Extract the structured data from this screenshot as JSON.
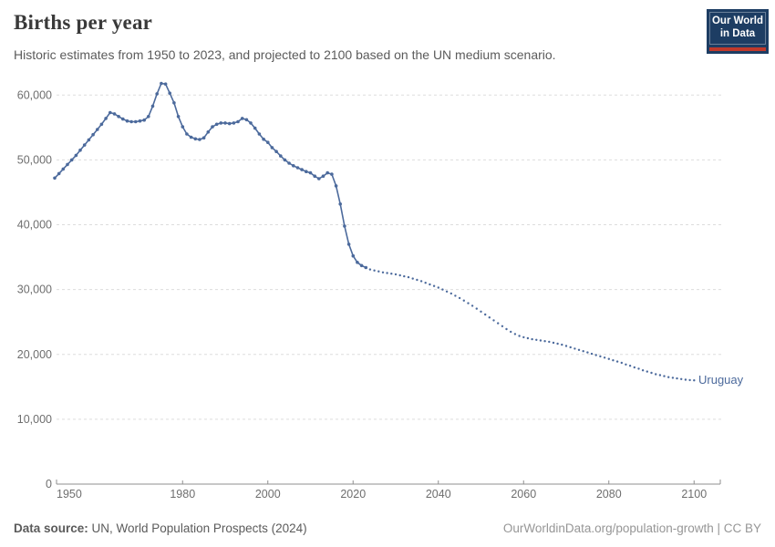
{
  "header": {
    "title": "Births per year",
    "subtitle": "Historic estimates from 1950 to 2023, and projected to 2100 based on the UN medium scenario.",
    "logo": {
      "line1": "Our World",
      "line2": "in Data",
      "bg": "#1d3d63",
      "accent": "#c0392b"
    }
  },
  "footer": {
    "source_label": "Data source:",
    "source_text": " UN, World Population Prospects (2024)",
    "credit": "OurWorldinData.org/population-growth | CC BY"
  },
  "chart_data": {
    "type": "line",
    "title": "Births per year",
    "entity": "Uruguay",
    "line_color": "#4c6a9c",
    "axis_color": "#8f8f8f",
    "grid_color": "#dddddd",
    "tick_label_color": "#6e6e6e",
    "grid": true,
    "legend_position": "end-of-line-label",
    "xlim": [
      1950,
      2100
    ],
    "ylim": [
      0,
      62000
    ],
    "yticks": [
      0,
      10000,
      20000,
      30000,
      40000,
      50000,
      60000
    ],
    "xticks": [
      1950,
      1980,
      2000,
      2020,
      2040,
      2060,
      2080,
      2100
    ],
    "series": [
      {
        "name": "historic",
        "style": "solid-markers",
        "points": [
          [
            1950,
            47200
          ],
          [
            1951,
            47900
          ],
          [
            1952,
            48600
          ],
          [
            1953,
            49300
          ],
          [
            1954,
            50000
          ],
          [
            1955,
            50700
          ],
          [
            1956,
            51500
          ],
          [
            1957,
            52300
          ],
          [
            1958,
            53100
          ],
          [
            1959,
            53900
          ],
          [
            1960,
            54700
          ],
          [
            1961,
            55500
          ],
          [
            1962,
            56400
          ],
          [
            1963,
            57300
          ],
          [
            1964,
            57100
          ],
          [
            1965,
            56700
          ],
          [
            1966,
            56300
          ],
          [
            1967,
            56000
          ],
          [
            1968,
            55900
          ],
          [
            1969,
            55900
          ],
          [
            1970,
            56000
          ],
          [
            1971,
            56150
          ],
          [
            1972,
            56700
          ],
          [
            1973,
            58300
          ],
          [
            1974,
            60200
          ],
          [
            1975,
            61800
          ],
          [
            1976,
            61700
          ],
          [
            1977,
            60300
          ],
          [
            1978,
            58800
          ],
          [
            1979,
            56700
          ],
          [
            1980,
            55100
          ],
          [
            1981,
            54000
          ],
          [
            1982,
            53500
          ],
          [
            1983,
            53250
          ],
          [
            1984,
            53150
          ],
          [
            1985,
            53400
          ],
          [
            1986,
            54300
          ],
          [
            1987,
            55100
          ],
          [
            1988,
            55500
          ],
          [
            1989,
            55700
          ],
          [
            1990,
            55700
          ],
          [
            1991,
            55600
          ],
          [
            1992,
            55700
          ],
          [
            1993,
            55900
          ],
          [
            1994,
            56400
          ],
          [
            1995,
            56200
          ],
          [
            1996,
            55700
          ],
          [
            1997,
            54900
          ],
          [
            1998,
            54000
          ],
          [
            1999,
            53200
          ],
          [
            2000,
            52700
          ],
          [
            2001,
            51900
          ],
          [
            2002,
            51300
          ],
          [
            2003,
            50600
          ],
          [
            2004,
            50000
          ],
          [
            2005,
            49500
          ],
          [
            2006,
            49100
          ],
          [
            2007,
            48800
          ],
          [
            2008,
            48500
          ],
          [
            2009,
            48200
          ],
          [
            2010,
            48000
          ],
          [
            2011,
            47500
          ],
          [
            2012,
            47100
          ],
          [
            2013,
            47500
          ],
          [
            2014,
            48000
          ],
          [
            2015,
            47800
          ],
          [
            2016,
            46000
          ],
          [
            2017,
            43200
          ],
          [
            2018,
            39800
          ],
          [
            2019,
            37000
          ],
          [
            2020,
            35200
          ],
          [
            2021,
            34200
          ],
          [
            2022,
            33700
          ],
          [
            2023,
            33400
          ]
        ]
      },
      {
        "name": "projection",
        "style": "dotted",
        "points": [
          [
            2024,
            33100
          ],
          [
            2025,
            32950
          ],
          [
            2026,
            32800
          ],
          [
            2027,
            32650
          ],
          [
            2028,
            32550
          ],
          [
            2029,
            32450
          ],
          [
            2030,
            32350
          ],
          [
            2031,
            32200
          ],
          [
            2032,
            32050
          ],
          [
            2033,
            31900
          ],
          [
            2034,
            31700
          ],
          [
            2035,
            31500
          ],
          [
            2036,
            31300
          ],
          [
            2037,
            31050
          ],
          [
            2038,
            30800
          ],
          [
            2039,
            30550
          ],
          [
            2040,
            30300
          ],
          [
            2041,
            30000
          ],
          [
            2042,
            29700
          ],
          [
            2043,
            29400
          ],
          [
            2044,
            29050
          ],
          [
            2045,
            28700
          ],
          [
            2046,
            28300
          ],
          [
            2047,
            27900
          ],
          [
            2048,
            27500
          ],
          [
            2049,
            27050
          ],
          [
            2050,
            26600
          ],
          [
            2051,
            26150
          ],
          [
            2052,
            25700
          ],
          [
            2053,
            25250
          ],
          [
            2054,
            24800
          ],
          [
            2055,
            24350
          ],
          [
            2056,
            23900
          ],
          [
            2057,
            23500
          ],
          [
            2058,
            23150
          ],
          [
            2059,
            22850
          ],
          [
            2060,
            22650
          ],
          [
            2061,
            22500
          ],
          [
            2062,
            22350
          ],
          [
            2063,
            22250
          ],
          [
            2064,
            22150
          ],
          [
            2065,
            22050
          ],
          [
            2066,
            21950
          ],
          [
            2067,
            21800
          ],
          [
            2068,
            21650
          ],
          [
            2069,
            21500
          ],
          [
            2070,
            21300
          ],
          [
            2071,
            21100
          ],
          [
            2072,
            20900
          ],
          [
            2073,
            20700
          ],
          [
            2074,
            20500
          ],
          [
            2075,
            20300
          ],
          [
            2076,
            20100
          ],
          [
            2077,
            19900
          ],
          [
            2078,
            19700
          ],
          [
            2079,
            19500
          ],
          [
            2080,
            19300
          ],
          [
            2081,
            19100
          ],
          [
            2082,
            18900
          ],
          [
            2083,
            18700
          ],
          [
            2084,
            18450
          ],
          [
            2085,
            18250
          ],
          [
            2086,
            18000
          ],
          [
            2087,
            17800
          ],
          [
            2088,
            17550
          ],
          [
            2089,
            17350
          ],
          [
            2090,
            17150
          ],
          [
            2091,
            16950
          ],
          [
            2092,
            16800
          ],
          [
            2093,
            16650
          ],
          [
            2094,
            16500
          ],
          [
            2095,
            16400
          ],
          [
            2096,
            16300
          ],
          [
            2097,
            16200
          ],
          [
            2098,
            16100
          ],
          [
            2099,
            16050
          ],
          [
            2100,
            16000
          ]
        ]
      }
    ]
  }
}
